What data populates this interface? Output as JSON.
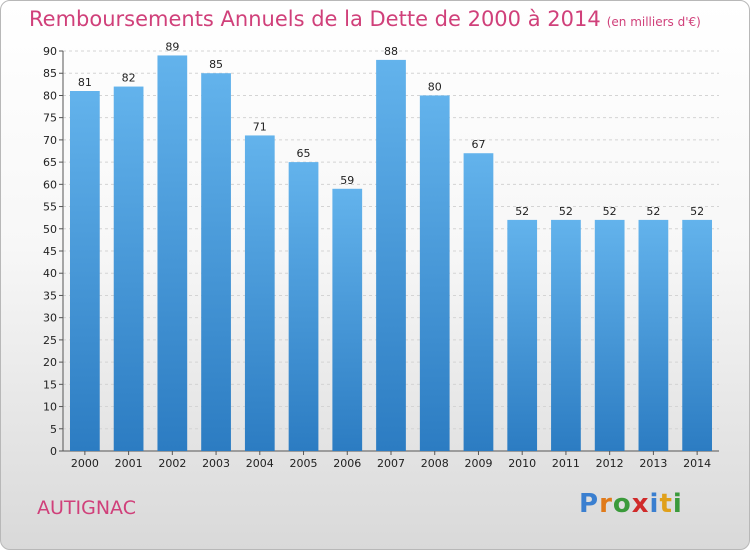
{
  "header": {
    "title": "Remboursements Annuels de la Dette de 2000 à 2014",
    "unit": "(en milliers d'€)"
  },
  "footer": {
    "town": "AUTIGNAC",
    "brand": "Proxiti"
  },
  "colors": {
    "bar": "#4a9ee0",
    "bar_light": "#6cb8ef",
    "bar_dark": "#2f7fc4",
    "title": "#d0407a",
    "grid": "#cccccc"
  },
  "chart_data": {
    "type": "bar",
    "title": "Remboursements Annuels de la Dette de 2000 à 2014",
    "subtitle": "(en milliers d'€)",
    "xlabel": "",
    "ylabel": "",
    "categories": [
      "2000",
      "2001",
      "2002",
      "2003",
      "2004",
      "2005",
      "2006",
      "2007",
      "2008",
      "2009",
      "2010",
      "2011",
      "2012",
      "2013",
      "2014"
    ],
    "values": [
      81,
      82,
      89,
      85,
      71,
      65,
      59,
      88,
      80,
      67,
      52,
      52,
      52,
      52,
      52
    ],
    "ylim": [
      0,
      90
    ],
    "ytick_step": 5,
    "grid": true,
    "legend": "none"
  }
}
